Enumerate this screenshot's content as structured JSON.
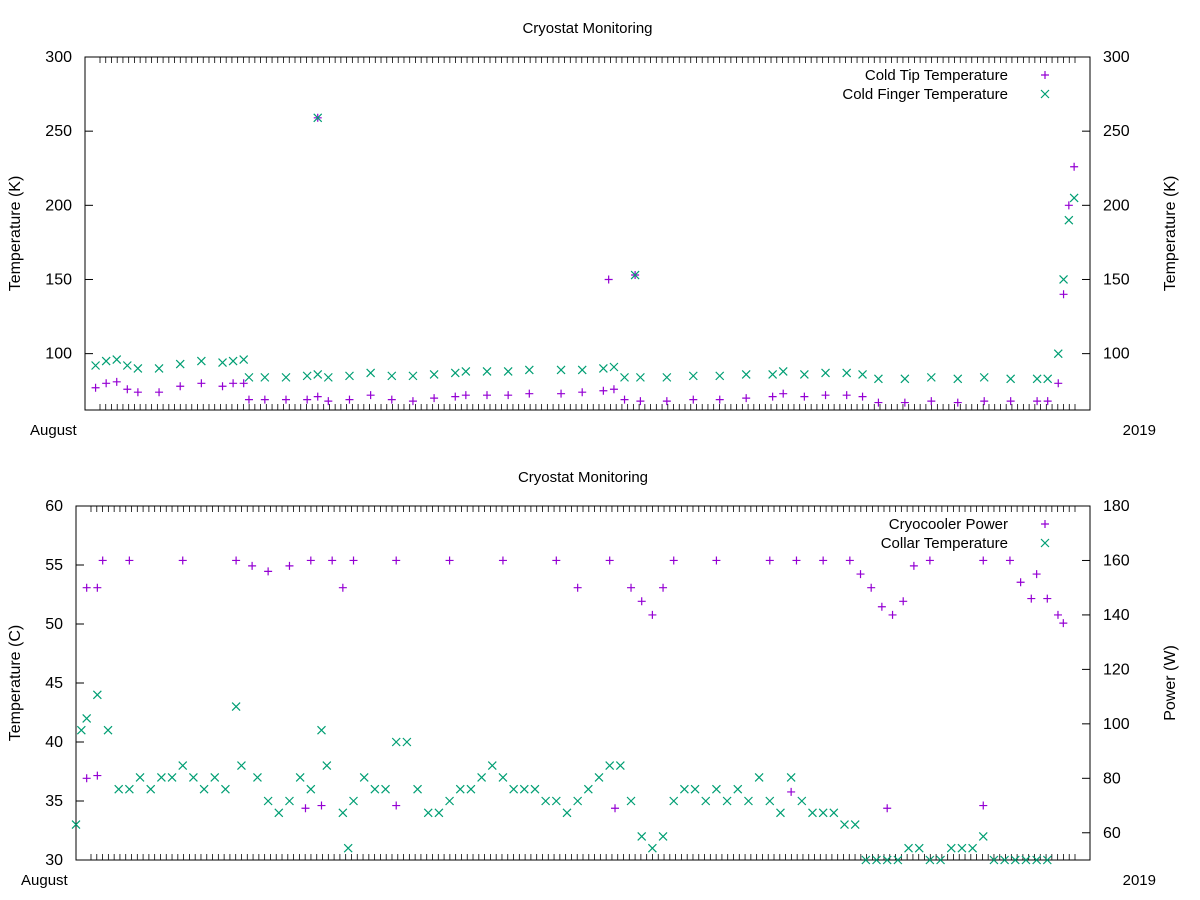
{
  "colors": {
    "primary": "#9400d3",
    "secondary": "#009e73",
    "axis": "#000000",
    "background": "#ffffff"
  },
  "chart_data": [
    {
      "type": "scatter",
      "title": "Cryostat Monitoring",
      "ylabel": "Temperature (K)",
      "y2label": "Temperature (K)",
      "ylim": [
        62,
        300
      ],
      "y2lim": [
        62,
        300
      ],
      "yticks": [
        100,
        150,
        200,
        250,
        300
      ],
      "y2ticks": [
        100,
        150,
        200,
        250,
        300
      ],
      "x_label_first": "August",
      "x_label_last": "2019",
      "legend_position": "top-right",
      "series": [
        {
          "name": "Cold Tip Temperature",
          "marker": "plus",
          "color": "#9400d3",
          "axis": "y",
          "points": [
            [
              0.02,
              77
            ],
            [
              0.04,
              80
            ],
            [
              0.06,
              81
            ],
            [
              0.08,
              76
            ],
            [
              0.1,
              74
            ],
            [
              0.14,
              74
            ],
            [
              0.18,
              78
            ],
            [
              0.22,
              80
            ],
            [
              0.26,
              78
            ],
            [
              0.28,
              80
            ],
            [
              0.3,
              80
            ],
            [
              0.31,
              69
            ],
            [
              0.34,
              69
            ],
            [
              0.38,
              69
            ],
            [
              0.42,
              69
            ],
            [
              0.44,
              71
            ],
            [
              0.46,
              68
            ],
            [
              0.5,
              69
            ],
            [
              0.54,
              72
            ],
            [
              0.58,
              69
            ],
            [
              0.62,
              68
            ],
            [
              0.66,
              70
            ],
            [
              0.7,
              71
            ],
            [
              0.72,
              72
            ],
            [
              0.76,
              72
            ],
            [
              0.8,
              72
            ],
            [
              0.84,
              73
            ],
            [
              0.9,
              73
            ],
            [
              0.94,
              74
            ],
            [
              0.98,
              75
            ],
            [
              1.0,
              76
            ],
            [
              1.02,
              69
            ],
            [
              1.05,
              68
            ],
            [
              1.1,
              68
            ],
            [
              1.15,
              69
            ],
            [
              1.2,
              69
            ],
            [
              1.25,
              70
            ],
            [
              1.3,
              71
            ],
            [
              1.32,
              73
            ],
            [
              1.36,
              71
            ],
            [
              1.4,
              72
            ],
            [
              1.44,
              72
            ],
            [
              1.47,
              71
            ],
            [
              1.5,
              67
            ],
            [
              1.55,
              67
            ],
            [
              1.6,
              68
            ],
            [
              1.65,
              67
            ],
            [
              1.7,
              68
            ],
            [
              1.75,
              68
            ],
            [
              1.8,
              68
            ],
            [
              1.82,
              68
            ],
            [
              1.84,
              80
            ],
            [
              1.85,
              140
            ],
            [
              1.86,
              200
            ],
            [
              1.87,
              226
            ],
            [
              0.44,
              259
            ],
            [
              0.99,
              150
            ],
            [
              1.04,
              153
            ]
          ]
        },
        {
          "name": "Cold Finger Temperature",
          "marker": "cross",
          "color": "#009e73",
          "axis": "y",
          "points": [
            [
              0.02,
              92
            ],
            [
              0.04,
              95
            ],
            [
              0.06,
              96
            ],
            [
              0.08,
              92
            ],
            [
              0.1,
              90
            ],
            [
              0.14,
              90
            ],
            [
              0.18,
              93
            ],
            [
              0.22,
              95
            ],
            [
              0.26,
              94
            ],
            [
              0.28,
              95
            ],
            [
              0.3,
              96
            ],
            [
              0.31,
              84
            ],
            [
              0.34,
              84
            ],
            [
              0.38,
              84
            ],
            [
              0.42,
              85
            ],
            [
              0.44,
              86
            ],
            [
              0.46,
              84
            ],
            [
              0.5,
              85
            ],
            [
              0.54,
              87
            ],
            [
              0.58,
              85
            ],
            [
              0.62,
              85
            ],
            [
              0.66,
              86
            ],
            [
              0.7,
              87
            ],
            [
              0.72,
              88
            ],
            [
              0.76,
              88
            ],
            [
              0.8,
              88
            ],
            [
              0.84,
              89
            ],
            [
              0.9,
              89
            ],
            [
              0.94,
              89
            ],
            [
              0.98,
              90
            ],
            [
              1.0,
              91
            ],
            [
              1.02,
              84
            ],
            [
              1.05,
              84
            ],
            [
              1.1,
              84
            ],
            [
              1.15,
              85
            ],
            [
              1.2,
              85
            ],
            [
              1.25,
              86
            ],
            [
              1.3,
              86
            ],
            [
              1.32,
              88
            ],
            [
              1.36,
              86
            ],
            [
              1.4,
              87
            ],
            [
              1.44,
              87
            ],
            [
              1.47,
              86
            ],
            [
              1.5,
              83
            ],
            [
              1.55,
              83
            ],
            [
              1.6,
              84
            ],
            [
              1.65,
              83
            ],
            [
              1.7,
              84
            ],
            [
              1.75,
              83
            ],
            [
              1.8,
              83
            ],
            [
              1.82,
              83
            ],
            [
              1.84,
              100
            ],
            [
              1.85,
              150
            ],
            [
              1.86,
              190
            ],
            [
              1.87,
              205
            ],
            [
              0.44,
              259
            ],
            [
              1.04,
              153
            ]
          ]
        }
      ]
    },
    {
      "type": "scatter",
      "title": "Cryostat Monitoring",
      "ylabel": "Temperature (C)",
      "y2label": "Power (W)",
      "ylim": [
        30,
        60
      ],
      "y2lim": [
        50,
        180
      ],
      "yticks": [
        30,
        35,
        40,
        45,
        50,
        55,
        60
      ],
      "y2ticks": [
        60,
        80,
        100,
        120,
        140,
        160,
        180
      ],
      "x_label_first": "August",
      "x_label_last": "2019",
      "legend_position": "top-right",
      "series": [
        {
          "name": "Cryocooler Power",
          "marker": "plus",
          "color": "#9400d3",
          "axis": "y2",
          "points": [
            [
              0.02,
              150
            ],
            [
              0.04,
              150
            ],
            [
              0.05,
              160
            ],
            [
              0.1,
              160
            ],
            [
              0.2,
              160
            ],
            [
              0.3,
              160
            ],
            [
              0.33,
              158
            ],
            [
              0.36,
              156
            ],
            [
              0.4,
              158
            ],
            [
              0.44,
              160
            ],
            [
              0.48,
              160
            ],
            [
              0.5,
              150
            ],
            [
              0.52,
              160
            ],
            [
              0.6,
              160
            ],
            [
              0.7,
              160
            ],
            [
              0.8,
              160
            ],
            [
              0.9,
              160
            ],
            [
              0.94,
              150
            ],
            [
              1.0,
              160
            ],
            [
              1.04,
              150
            ],
            [
              1.06,
              145
            ],
            [
              1.08,
              140
            ],
            [
              1.1,
              150
            ],
            [
              1.12,
              160
            ],
            [
              1.2,
              160
            ],
            [
              1.3,
              160
            ],
            [
              1.35,
              160
            ],
            [
              1.4,
              160
            ],
            [
              1.45,
              160
            ],
            [
              1.47,
              155
            ],
            [
              1.49,
              150
            ],
            [
              1.51,
              143
            ],
            [
              1.53,
              140
            ],
            [
              1.55,
              145
            ],
            [
              1.57,
              158
            ],
            [
              1.6,
              160
            ],
            [
              1.7,
              160
            ],
            [
              1.75,
              160
            ],
            [
              1.77,
              152
            ],
            [
              1.79,
              146
            ],
            [
              1.8,
              155
            ],
            [
              1.82,
              146
            ],
            [
              1.84,
              140
            ],
            [
              1.85,
              137
            ],
            [
              0.02,
              80
            ],
            [
              0.04,
              81
            ],
            [
              0.43,
              69
            ],
            [
              0.46,
              70
            ],
            [
              0.6,
              70
            ],
            [
              1.01,
              69
            ],
            [
              1.34,
              75
            ],
            [
              1.52,
              69
            ],
            [
              1.7,
              70
            ]
          ]
        },
        {
          "name": "Collar Temperature",
          "marker": "cross",
          "color": "#009e73",
          "axis": "y",
          "points": [
            [
              0.0,
              33
            ],
            [
              0.01,
              41
            ],
            [
              0.02,
              42
            ],
            [
              0.04,
              44
            ],
            [
              0.06,
              41
            ],
            [
              0.08,
              36
            ],
            [
              0.1,
              36
            ],
            [
              0.12,
              37
            ],
            [
              0.14,
              36
            ],
            [
              0.16,
              37
            ],
            [
              0.18,
              37
            ],
            [
              0.2,
              38
            ],
            [
              0.22,
              37
            ],
            [
              0.24,
              36
            ],
            [
              0.26,
              37
            ],
            [
              0.28,
              36
            ],
            [
              0.3,
              43
            ],
            [
              0.31,
              38
            ],
            [
              0.34,
              37
            ],
            [
              0.36,
              35
            ],
            [
              0.38,
              34
            ],
            [
              0.4,
              35
            ],
            [
              0.42,
              37
            ],
            [
              0.44,
              36
            ],
            [
              0.46,
              41
            ],
            [
              0.47,
              38
            ],
            [
              0.5,
              34
            ],
            [
              0.51,
              31
            ],
            [
              0.52,
              35
            ],
            [
              0.54,
              37
            ],
            [
              0.56,
              36
            ],
            [
              0.58,
              36
            ],
            [
              0.6,
              40
            ],
            [
              0.62,
              40
            ],
            [
              0.64,
              36
            ],
            [
              0.66,
              34
            ],
            [
              0.68,
              34
            ],
            [
              0.7,
              35
            ],
            [
              0.72,
              36
            ],
            [
              0.74,
              36
            ],
            [
              0.76,
              37
            ],
            [
              0.78,
              38
            ],
            [
              0.8,
              37
            ],
            [
              0.82,
              36
            ],
            [
              0.84,
              36
            ],
            [
              0.86,
              36
            ],
            [
              0.88,
              35
            ],
            [
              0.9,
              35
            ],
            [
              0.92,
              34
            ],
            [
              0.94,
              35
            ],
            [
              0.96,
              36
            ],
            [
              0.98,
              37
            ],
            [
              1.0,
              38
            ],
            [
              1.02,
              38
            ],
            [
              1.04,
              35
            ],
            [
              1.06,
              32
            ],
            [
              1.08,
              31
            ],
            [
              1.1,
              32
            ],
            [
              1.12,
              35
            ],
            [
              1.14,
              36
            ],
            [
              1.16,
              36
            ],
            [
              1.18,
              35
            ],
            [
              1.2,
              36
            ],
            [
              1.22,
              35
            ],
            [
              1.24,
              36
            ],
            [
              1.26,
              35
            ],
            [
              1.28,
              37
            ],
            [
              1.3,
              35
            ],
            [
              1.32,
              34
            ],
            [
              1.34,
              37
            ],
            [
              1.36,
              35
            ],
            [
              1.38,
              34
            ],
            [
              1.4,
              34
            ],
            [
              1.42,
              34
            ],
            [
              1.44,
              33
            ],
            [
              1.46,
              33
            ],
            [
              1.48,
              30
            ],
            [
              1.5,
              30
            ],
            [
              1.52,
              30
            ],
            [
              1.54,
              30
            ],
            [
              1.56,
              31
            ],
            [
              1.58,
              31
            ],
            [
              1.6,
              30
            ],
            [
              1.62,
              30
            ],
            [
              1.64,
              31
            ],
            [
              1.66,
              31
            ],
            [
              1.68,
              31
            ],
            [
              1.7,
              32
            ],
            [
              1.72,
              30
            ],
            [
              1.74,
              30
            ],
            [
              1.76,
              30
            ],
            [
              1.78,
              30
            ],
            [
              1.8,
              30
            ],
            [
              1.82,
              30
            ]
          ]
        }
      ]
    }
  ]
}
